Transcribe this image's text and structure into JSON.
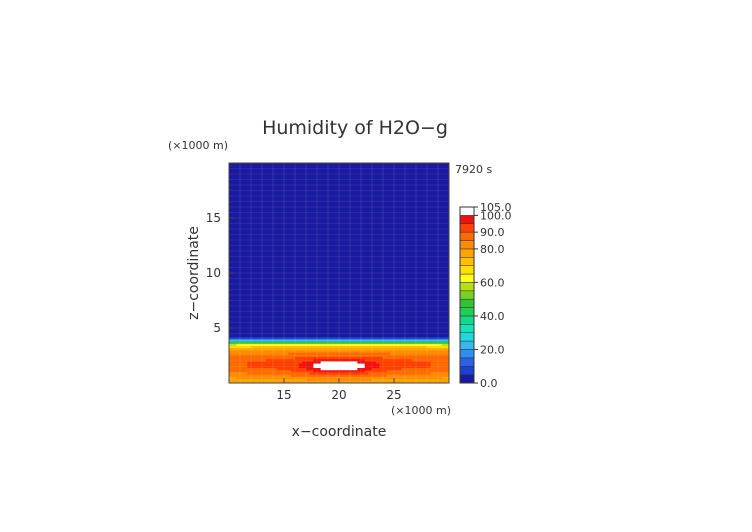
{
  "chart_data": {
    "type": "heatmap",
    "title": "Humidity of H2O−g",
    "time_label": "7920 s",
    "xlabel": "x−coordinate",
    "ylabel": "z−coordinate",
    "x_unit": "(×1000 m)",
    "y_unit": "(×1000 m)",
    "x_range": [
      10,
      30
    ],
    "y_range": [
      0,
      20
    ],
    "x_ticks": [
      "15",
      "20",
      "25"
    ],
    "x_tick_values": [
      15,
      20,
      25
    ],
    "y_ticks": [
      "5",
      "10",
      "15"
    ],
    "y_tick_values": [
      5,
      10,
      15
    ],
    "grid": true,
    "colorbar": {
      "levels": [
        0,
        5,
        10,
        15,
        20,
        25,
        30,
        35,
        40,
        45,
        50,
        55,
        60,
        65,
        70,
        75,
        80,
        85,
        90,
        95,
        100,
        105
      ],
      "colors": [
        "#1a1aa0",
        "#1f3fd0",
        "#2b60e8",
        "#2f8ef5",
        "#35b8f0",
        "#22d6dc",
        "#13e3b8",
        "#15d98a",
        "#22cc55",
        "#33c233",
        "#77d022",
        "#b8e010",
        "#ffff1a",
        "#ffe000",
        "#ffc000",
        "#ffa400",
        "#ff8c00",
        "#ff6a00",
        "#ff4000",
        "#f01010",
        "#ffffff"
      ],
      "tick_labels": [
        "0.0",
        "20.0",
        "40.0",
        "60.0",
        "80.0",
        "90.0",
        "100.0",
        "105.0"
      ],
      "tick_values": [
        0,
        20,
        40,
        60,
        80,
        90,
        100,
        105
      ]
    },
    "field_profile_z": [
      0,
      0.3,
      0.6,
      1.0,
      1.5,
      2.0,
      2.5,
      3.0,
      3.3,
      3.6,
      3.8,
      4.0,
      4.5,
      20
    ],
    "field_profile_values": [
      78,
      80,
      84,
      88,
      92,
      92,
      88,
      82,
      72,
      58,
      40,
      8,
      2,
      2
    ],
    "peak": {
      "x": 20,
      "z": 1.5,
      "value": 102
    }
  }
}
